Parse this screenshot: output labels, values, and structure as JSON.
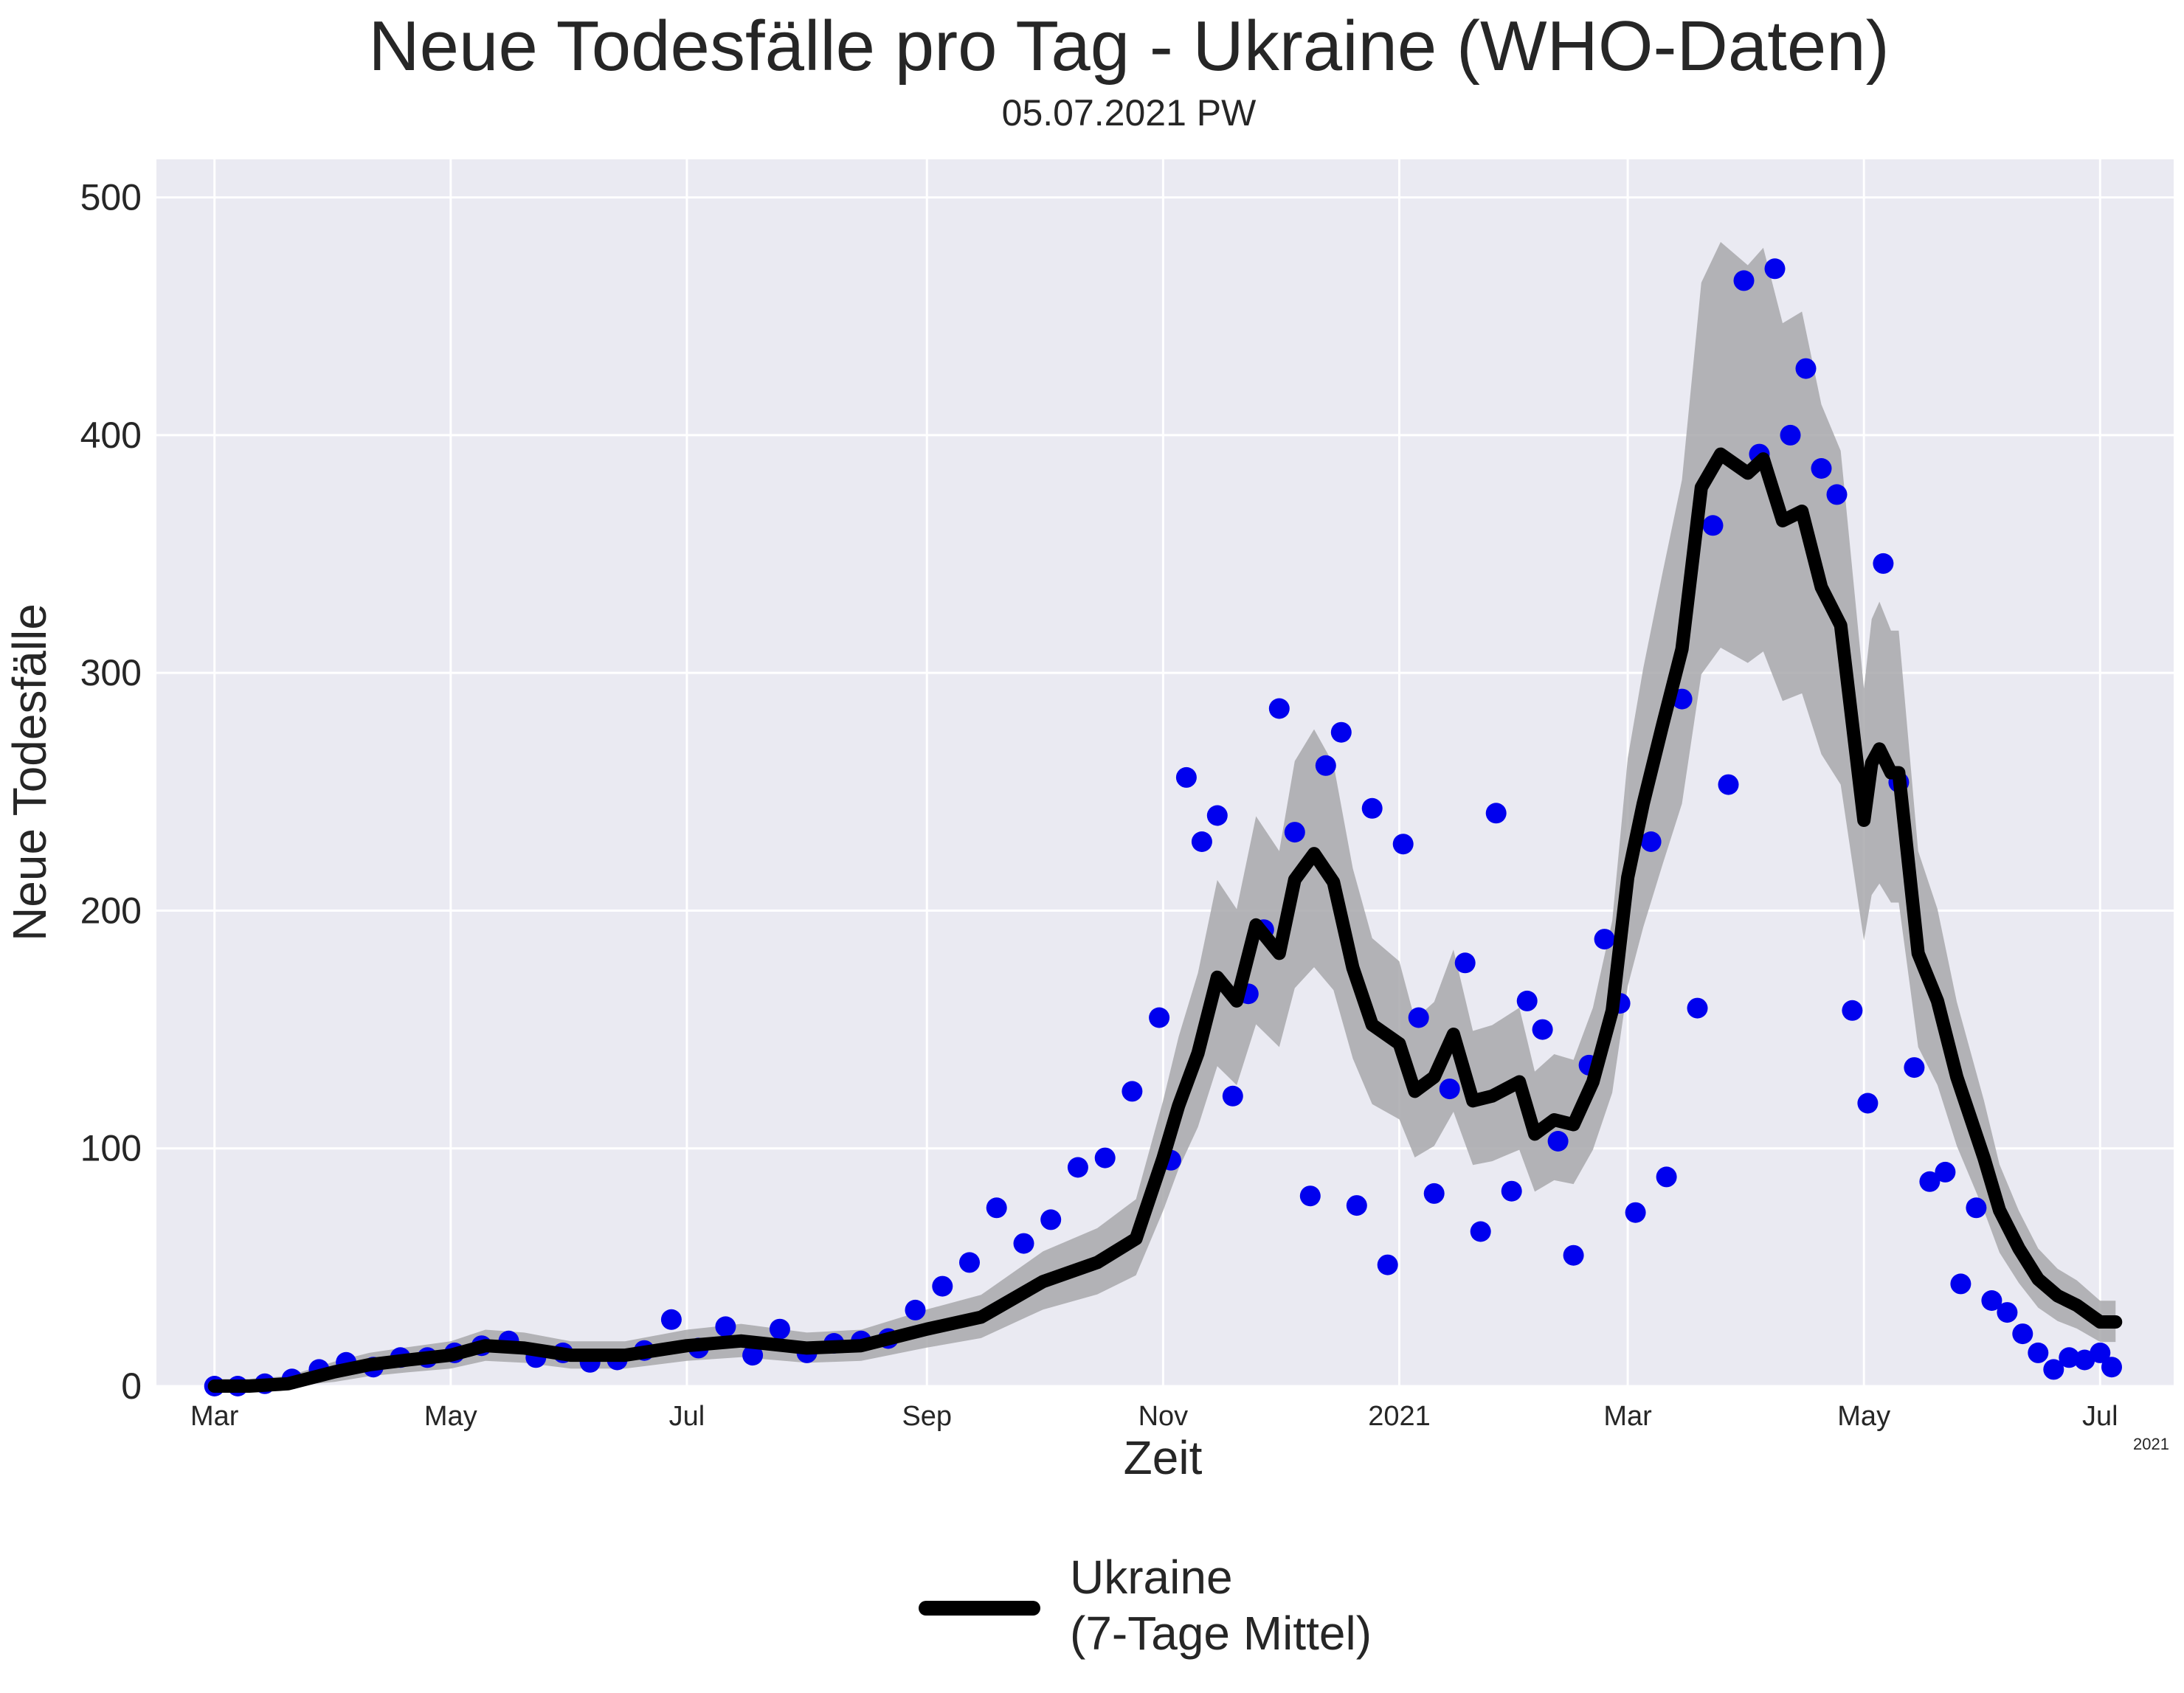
{
  "chart_data": {
    "type": "line",
    "title": "Neue Todesfälle pro Tag - Ukraine (WHO-Daten)",
    "subtitle": "05.07.2021 PW",
    "xlabel": "Zeit",
    "ylabel": "Neue Todesfälle",
    "x_offset_label": "2021",
    "x_range": [
      "2020-02-15",
      "2021-07-20"
    ],
    "ylim": [
      0,
      516
    ],
    "y_ticks": [
      0,
      100,
      200,
      300,
      400,
      500
    ],
    "y_tick_labels": [
      "0",
      "100",
      "200",
      "300",
      "400",
      "500"
    ],
    "x_ticks": [
      "2020-03-01",
      "2020-05-01",
      "2020-07-01",
      "2020-09-01",
      "2020-11-01",
      "2021-01-01",
      "2021-03-01",
      "2021-05-01",
      "2021-07-01"
    ],
    "x_tick_labels": [
      "Mar",
      "May",
      "Jul",
      "Sep",
      "Nov",
      "2021",
      "Mar",
      "May",
      "Jul"
    ],
    "grid": true,
    "legend_position": "bottom-center",
    "colors": {
      "line": "#000000",
      "points": "#0000ee",
      "band": "#a8a8ab",
      "background": "#eaeaf2",
      "grid": "#ffffff"
    },
    "series": [
      {
        "name": "Ukraine\n(7-Tage Mittel)",
        "kind": "line",
        "x": [
          "2020-03-01",
          "2020-03-10",
          "2020-03-20",
          "2020-04-01",
          "2020-04-10",
          "2020-04-20",
          "2020-05-01",
          "2020-05-10",
          "2020-05-20",
          "2020-06-01",
          "2020-06-15",
          "2020-07-01",
          "2020-07-15",
          "2020-08-01",
          "2020-08-15",
          "2020-09-01",
          "2020-09-15",
          "2020-10-01",
          "2020-10-15",
          "2020-10-25",
          "2020-11-01",
          "2020-11-05",
          "2020-11-10",
          "2020-11-15",
          "2020-11-20",
          "2020-11-25",
          "2020-12-01",
          "2020-12-05",
          "2020-12-10",
          "2020-12-15",
          "2020-12-20",
          "2020-12-25",
          "2021-01-01",
          "2021-01-05",
          "2021-01-10",
          "2021-01-15",
          "2021-01-20",
          "2021-01-25",
          "2021-02-01",
          "2021-02-05",
          "2021-02-10",
          "2021-02-15",
          "2021-02-20",
          "2021-02-25",
          "2021-03-01",
          "2021-03-05",
          "2021-03-10",
          "2021-03-15",
          "2021-03-20",
          "2021-03-25",
          "2021-04-01",
          "2021-04-05",
          "2021-04-10",
          "2021-04-15",
          "2021-04-20",
          "2021-04-25",
          "2021-05-01",
          "2021-05-03",
          "2021-05-05",
          "2021-05-08",
          "2021-05-10",
          "2021-05-15",
          "2021-05-20",
          "2021-05-25",
          "2021-06-01",
          "2021-06-05",
          "2021-06-10",
          "2021-06-15",
          "2021-06-20",
          "2021-06-25",
          "2021-07-01",
          "2021-07-05"
        ],
        "y": [
          0,
          0,
          1,
          6,
          9,
          11,
          13,
          17,
          16,
          13,
          13,
          17,
          19,
          16,
          17,
          24,
          29,
          44,
          52,
          62,
          96,
          118,
          140,
          172,
          162,
          194,
          182,
          213,
          224,
          212,
          176,
          152,
          144,
          124,
          130,
          148,
          120,
          122,
          128,
          106,
          112,
          110,
          128,
          158,
          214,
          245,
          278,
          310,
          378,
          392,
          384,
          390,
          364,
          368,
          336,
          320,
          238,
          262,
          268,
          258,
          258,
          182,
          162,
          130,
          96,
          74,
          58,
          45,
          38,
          34,
          27,
          27
        ]
      },
      {
        "name": "",
        "kind": "scatter",
        "x": [
          "2020-03-01",
          "2020-03-07",
          "2020-03-14",
          "2020-03-21",
          "2020-03-28",
          "2020-04-04",
          "2020-04-11",
          "2020-04-18",
          "2020-04-25",
          "2020-05-02",
          "2020-05-09",
          "2020-05-16",
          "2020-05-23",
          "2020-05-30",
          "2020-06-06",
          "2020-06-13",
          "2020-06-20",
          "2020-06-27",
          "2020-07-04",
          "2020-07-11",
          "2020-07-18",
          "2020-07-25",
          "2020-08-01",
          "2020-08-08",
          "2020-08-15",
          "2020-08-22",
          "2020-08-29",
          "2020-09-05",
          "2020-09-12",
          "2020-09-19",
          "2020-09-26",
          "2020-10-03",
          "2020-10-10",
          "2020-10-17",
          "2020-10-24",
          "2020-10-31",
          "2020-11-03",
          "2020-11-07",
          "2020-11-11",
          "2020-11-15",
          "2020-11-19",
          "2020-11-23",
          "2020-11-27",
          "2020-12-01",
          "2020-12-05",
          "2020-12-09",
          "2020-12-13",
          "2020-12-17",
          "2020-12-21",
          "2020-12-25",
          "2020-12-29",
          "2021-01-02",
          "2021-01-06",
          "2021-01-10",
          "2021-01-14",
          "2021-01-18",
          "2021-01-22",
          "2021-01-26",
          "2021-01-30",
          "2021-02-03",
          "2021-02-07",
          "2021-02-11",
          "2021-02-15",
          "2021-02-19",
          "2021-02-23",
          "2021-02-27",
          "2021-03-03",
          "2021-03-07",
          "2021-03-11",
          "2021-03-15",
          "2021-03-19",
          "2021-03-23",
          "2021-03-27",
          "2021-03-31",
          "2021-04-04",
          "2021-04-08",
          "2021-04-12",
          "2021-04-16",
          "2021-04-20",
          "2021-04-24",
          "2021-04-28",
          "2021-05-02",
          "2021-05-06",
          "2021-05-10",
          "2021-05-14",
          "2021-05-18",
          "2021-05-22",
          "2021-05-26",
          "2021-05-30",
          "2021-06-03",
          "2021-06-07",
          "2021-06-11",
          "2021-06-15",
          "2021-06-19",
          "2021-06-23",
          "2021-06-27",
          "2021-07-01",
          "2021-07-04"
        ],
        "y": [
          0,
          0,
          1,
          3,
          7,
          10,
          8,
          12,
          12,
          14,
          17,
          19,
          12,
          14,
          10,
          11,
          15,
          28,
          16,
          25,
          13,
          24,
          14,
          18,
          19,
          20,
          32,
          42,
          52,
          75,
          60,
          70,
          92,
          96,
          124,
          155,
          95,
          256,
          229,
          240,
          122,
          165,
          192,
          285,
          233,
          80,
          261,
          275,
          76,
          243,
          51,
          228,
          155,
          81,
          125,
          178,
          65,
          241,
          82,
          162,
          150,
          103,
          55,
          135,
          188,
          161,
          73,
          229,
          88,
          289,
          159,
          362,
          253,
          465,
          392,
          470,
          400,
          428,
          386,
          375,
          158,
          119,
          346,
          254,
          134,
          86,
          90,
          43,
          75,
          36,
          31,
          22,
          14,
          7,
          12,
          11,
          14,
          8
        ]
      }
    ]
  }
}
